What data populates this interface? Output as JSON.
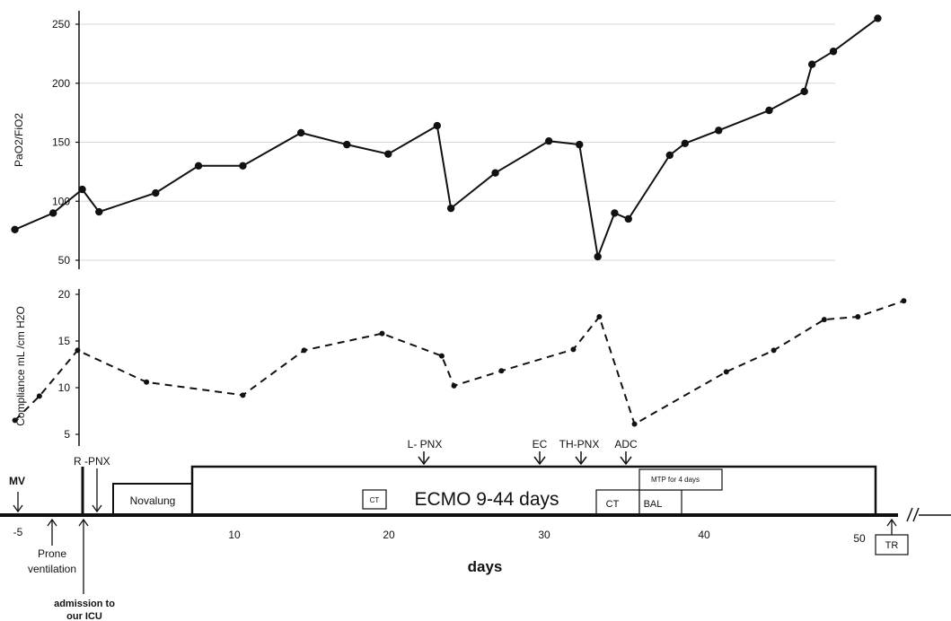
{
  "chart_data": [
    {
      "type": "line",
      "ylabel": "PaO2/FiO2",
      "ylim": [
        50,
        250
      ],
      "yticks": [
        50,
        100,
        150,
        200,
        250
      ],
      "grid": true,
      "line_style": "solid",
      "series": [
        {
          "x": [
            -5.2,
            -2.7,
            -0.8,
            0.3,
            4.0,
            6.8,
            9.7,
            13.5,
            16.5,
            19.2,
            22.4,
            23.3,
            26.2,
            29.7,
            31.7,
            32.9,
            34.0,
            34.9,
            37.6,
            38.6,
            40.8,
            44.1,
            46.4,
            46.9,
            48.3,
            51.2
          ],
          "y": [
            76,
            90,
            110,
            91,
            107,
            130,
            130,
            158,
            148,
            140,
            164,
            94,
            124,
            151,
            148,
            53,
            90,
            85,
            139,
            149,
            160,
            177,
            193,
            216,
            227,
            255
          ]
        }
      ]
    },
    {
      "type": "line",
      "ylabel": "Compliance  mL /cm H2O",
      "ylim": [
        5,
        20
      ],
      "yticks": [
        5,
        10,
        15,
        20
      ],
      "grid": false,
      "line_style": "dashed",
      "series": [
        {
          "x": [
            -5.2,
            -3.6,
            -1.1,
            3.4,
            9.7,
            13.7,
            18.8,
            22.7,
            23.5,
            26.6,
            31.3,
            33.0,
            35.3,
            41.3,
            44.4,
            47.7,
            49.9,
            52.9
          ],
          "y": [
            6.5,
            9.1,
            14.0,
            10.6,
            9.2,
            14.0,
            15.8,
            13.4,
            10.2,
            11.8,
            14.1,
            17.6,
            6.1,
            11.7,
            14.0,
            17.3,
            17.6,
            19.3
          ]
        }
      ]
    }
  ],
  "timeline": {
    "xlabel": "days",
    "xticks": [
      "-5",
      "10",
      "20",
      "30",
      "40",
      "50"
    ],
    "mv": "MV",
    "prone": [
      "Prone",
      "ventilation"
    ],
    "admission": [
      "admission to",
      "our ICU"
    ],
    "rpnx": "R -PNX",
    "lpnx": "L- PNX",
    "ec": "EC",
    "thpnx": "TH-PNX",
    "adc": "ADC",
    "novalung": "Novalung",
    "ecmo": "ECMO 9-44 days",
    "ct": "CT",
    "bal": "BAL",
    "mtp": "MTP for 4 days",
    "tr": "TR",
    "break": "//"
  }
}
